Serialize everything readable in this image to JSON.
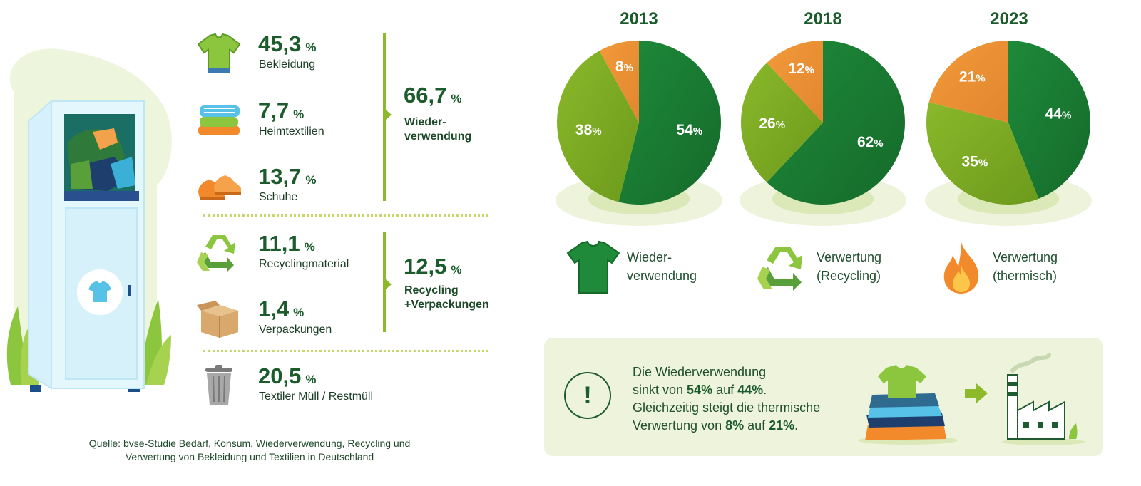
{
  "categories": [
    {
      "value": "45,3",
      "unit": "%",
      "label": "Bekleidung",
      "icon": "tshirt-icon"
    },
    {
      "value": "7,7",
      "unit": "%",
      "label": "Heimtextilien",
      "icon": "folded-textiles-icon"
    },
    {
      "value": "13,7",
      "unit": "%",
      "label": "Schuhe",
      "icon": "shoes-icon"
    },
    {
      "value": "11,1",
      "unit": "%",
      "label": "Recyclingmaterial",
      "icon": "recycling-icon"
    },
    {
      "value": "1,4",
      "unit": "%",
      "label": "Verpackungen",
      "icon": "cardboard-box-icon"
    },
    {
      "value": "20,5",
      "unit": "%",
      "label": "Textiler Müll / Restmüll",
      "icon": "trash-can-icon"
    }
  ],
  "groups": [
    {
      "value": "66,7",
      "unit": "%",
      "label": "Wieder-\nverwendung"
    },
    {
      "value": "12,5",
      "unit": "%",
      "label": "Recycling\n+Verpackungen"
    }
  ],
  "source": {
    "line1": "Quelle: bvse-Studie Bedarf, Konsum, Wiederverwendung, Recycling und",
    "line2": "Verwertung von Bekleidung und Textilien in Deutschland"
  },
  "legend": [
    {
      "label": "Wieder-\nverwendung",
      "icon": "green-tshirt-icon"
    },
    {
      "label": "Verwertung\n(Recycling)",
      "icon": "recycling-icon"
    },
    {
      "label": "Verwertung\n(thermisch)",
      "icon": "flame-icon"
    }
  ],
  "note": {
    "icon": "exclamation-icon",
    "symbol": "!",
    "line1": "Die Wiederverwendung",
    "line2_pre": "sinkt von ",
    "line2_a": "54%",
    "line2_mid": " auf ",
    "line2_b": "44%",
    "line2_post": ".",
    "line3": "Gleichzeitig steigt die thermische",
    "line4_pre": "Verwertung von ",
    "line4_a": "8%",
    "line4_mid": " auf ",
    "line4_b": "21%",
    "line4_post": "."
  },
  "colors": {
    "reuse": "#1e8a3a",
    "recycling": "#8ab82a",
    "thermal": "#f29a3a",
    "accent": "#8cba2b",
    "dark_text": "#1c5c2c"
  },
  "chart_data": {
    "type": "pie",
    "years": [
      "2013",
      "2018",
      "2023"
    ],
    "series_names": [
      "Wiederverwendung",
      "Verwertung (Recycling)",
      "Verwertung (thermisch)"
    ],
    "values": [
      [
        54,
        38,
        8
      ],
      [
        62,
        26,
        12
      ],
      [
        44,
        35,
        21
      ]
    ],
    "value_suffix": "%"
  }
}
